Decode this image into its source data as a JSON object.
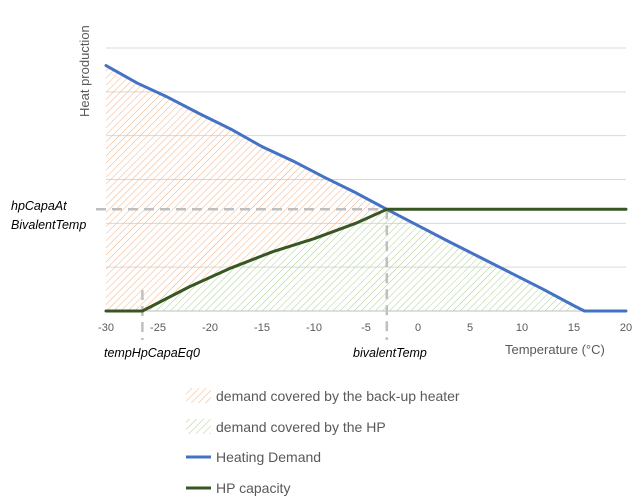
{
  "chart_data": {
    "type": "line",
    "title": "",
    "xlabel": "Temperature (°C)",
    "ylabel": "Heat production",
    "xlim": [
      -30,
      20
    ],
    "ylim": [
      0,
      6
    ],
    "x_ticks": [
      -30,
      -25,
      -20,
      -15,
      -10,
      -5,
      0,
      5,
      10,
      15,
      20
    ],
    "x_tick_labels": [
      "-30",
      "-25",
      "-20",
      "-15",
      "-10",
      "-5",
      "0",
      "5",
      "10",
      "15",
      "20"
    ],
    "grid": true,
    "legend_position": "bottom",
    "series": [
      {
        "name": "Heating Demand",
        "color": "#4472C4",
        "x": [
          -30,
          -27,
          -24,
          -21,
          -18,
          -15,
          -12,
          -9,
          -6,
          -3,
          0,
          3,
          6,
          9,
          12,
          15,
          16,
          20
        ],
        "y": [
          5.6,
          5.2,
          4.87,
          4.5,
          4.15,
          3.75,
          3.42,
          3.05,
          2.7,
          2.32,
          1.95,
          1.58,
          1.22,
          0.86,
          0.5,
          0.12,
          0,
          0
        ]
      },
      {
        "name": "HP capacity",
        "color": "#375623",
        "x": [
          -30,
          -26.5,
          -22,
          -18,
          -14,
          -10,
          -6,
          -3,
          0,
          5,
          10,
          15,
          20
        ],
        "y": [
          0,
          0,
          0.55,
          0.98,
          1.35,
          1.65,
          2.0,
          2.32,
          2.32,
          2.32,
          2.32,
          2.32,
          2.32
        ]
      }
    ],
    "areas": [
      {
        "name": "demand covered by the back-up heater",
        "color": "#F4B183",
        "pattern": "diagonal-hatch"
      },
      {
        "name": "demand covered by the HP",
        "color": "#A9D18E",
        "pattern": "diagonal-hatch"
      }
    ],
    "annotations": {
      "y_marker_label_line1": "hpCapaAt",
      "y_marker_label_line2": "BivalentTemp",
      "y_marker_value": 2.32,
      "x_marker_left_label": "tempHpCapaEq0",
      "x_marker_left_value": -26.5,
      "x_marker_right_label": "bivalentTemp",
      "x_marker_right_value": -3,
      "marker_color": "#BFBFBF"
    },
    "legend": [
      {
        "label": "demand covered by the back-up heater",
        "kind": "hatch",
        "color": "#F4B183"
      },
      {
        "label": "demand covered by the HP",
        "kind": "hatch",
        "color": "#A9D18E"
      },
      {
        "label": "Heating Demand",
        "kind": "line",
        "color": "#4472C4"
      },
      {
        "label": "HP capacity",
        "kind": "line",
        "color": "#375623"
      }
    ]
  }
}
